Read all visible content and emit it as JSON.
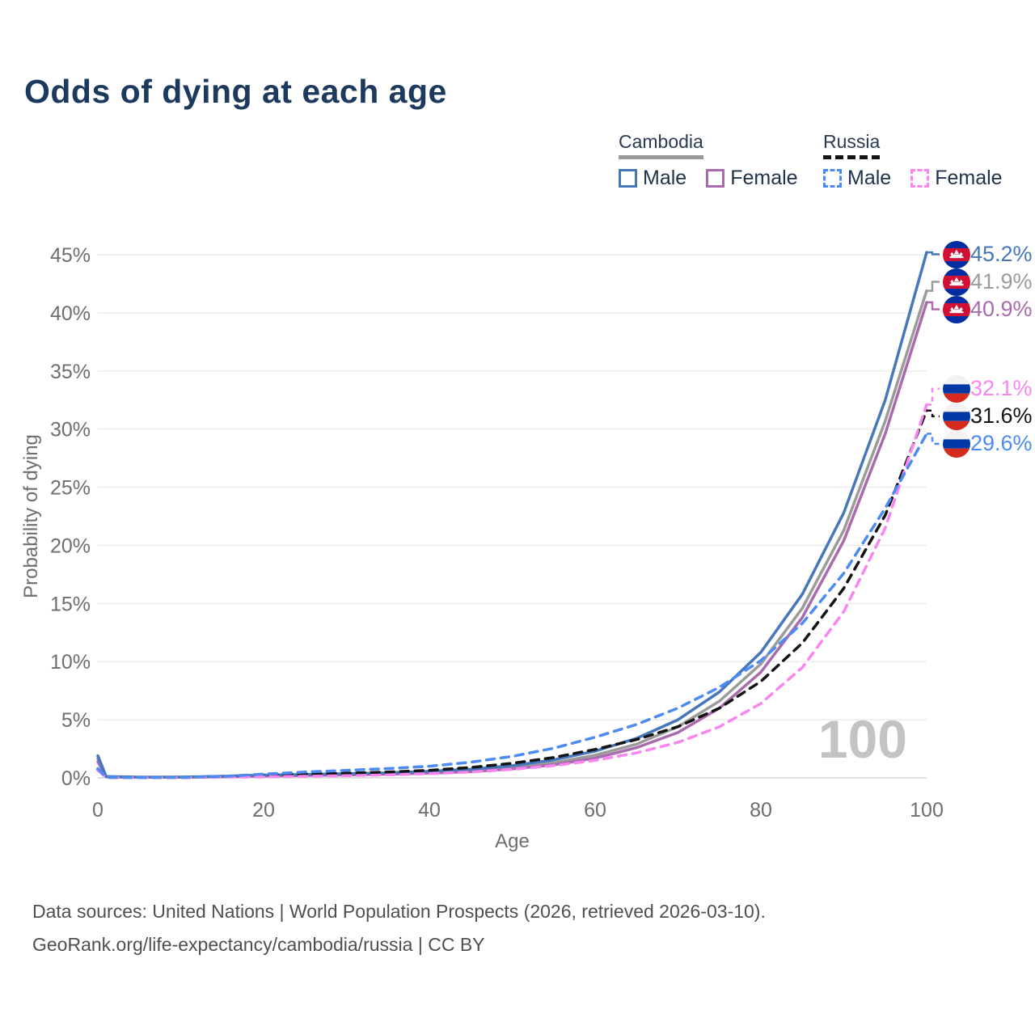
{
  "title": "Odds of dying at each age",
  "watermark": "100",
  "legend": {
    "groups": [
      {
        "country": "Cambodia",
        "underline_color": "#9a9a9a",
        "underline_dashed": false,
        "items": [
          {
            "label": "Male",
            "color": "#4677bd",
            "dashed": false
          },
          {
            "label": "Female",
            "color": "#a96bae",
            "dashed": false
          }
        ]
      },
      {
        "country": "Russia",
        "underline_color": "#141414",
        "underline_dashed": true,
        "items": [
          {
            "label": "Male",
            "color": "#4c8bf2",
            "dashed": true
          },
          {
            "label": "Female",
            "color": "#f986f0",
            "dashed": true
          }
        ]
      }
    ]
  },
  "chart_data": {
    "type": "line",
    "title": "Odds of dying at each age",
    "xlabel": "Age",
    "ylabel": "Probability of dying",
    "xlim": [
      0,
      100
    ],
    "ylim": [
      0,
      45
    ],
    "xticks": [
      0,
      20,
      40,
      60,
      80,
      100
    ],
    "yticks": [
      0,
      5,
      10,
      15,
      20,
      25,
      30,
      35,
      40,
      45
    ],
    "ytick_suffix": "%",
    "grid": "horizontal",
    "legend_position": "top-right",
    "x": [
      0,
      1,
      5,
      10,
      15,
      20,
      25,
      30,
      35,
      40,
      45,
      50,
      55,
      60,
      65,
      70,
      75,
      80,
      85,
      90,
      95,
      100
    ],
    "series": [
      {
        "name": "Cambodia Both sexes",
        "country": "Cambodia",
        "sex": "Both",
        "color": "#9b9b9b",
        "dashed": false,
        "flag": "cambodia",
        "end_label": "41.9%",
        "end_value": 41.9,
        "values": [
          1.65,
          0.1,
          0.05,
          0.06,
          0.12,
          0.2,
          0.25,
          0.3,
          0.37,
          0.47,
          0.63,
          0.9,
          1.3,
          1.95,
          2.9,
          4.4,
          6.6,
          9.8,
          14.6,
          21.3,
          30.7,
          41.9
        ]
      },
      {
        "name": "Cambodia Female",
        "country": "Cambodia",
        "sex": "Female",
        "color": "#a96bae",
        "dashed": false,
        "flag": "cambodia",
        "end_label": "40.9%",
        "end_value": 40.9,
        "values": [
          1.4,
          0.09,
          0.05,
          0.05,
          0.1,
          0.16,
          0.2,
          0.25,
          0.31,
          0.4,
          0.53,
          0.77,
          1.12,
          1.7,
          2.6,
          3.9,
          6.0,
          9.1,
          13.8,
          20.4,
          29.6,
          40.9
        ]
      },
      {
        "name": "Cambodia Male",
        "country": "Cambodia",
        "sex": "Male",
        "color": "#4677bd",
        "dashed": false,
        "flag": "cambodia",
        "end_label": "45.2%",
        "end_value": 45.2,
        "values": [
          1.9,
          0.12,
          0.06,
          0.07,
          0.14,
          0.24,
          0.3,
          0.36,
          0.44,
          0.56,
          0.75,
          1.05,
          1.55,
          2.3,
          3.4,
          5.0,
          7.4,
          10.8,
          15.8,
          22.8,
          32.5,
          45.2
        ]
      },
      {
        "name": "Russia Both sexes",
        "country": "Russia",
        "sex": "Both",
        "color": "#141414",
        "dashed": true,
        "flag": "russia",
        "end_label": "31.6%",
        "end_value": 31.6,
        "values": [
          0.7,
          0.04,
          0.03,
          0.03,
          0.09,
          0.2,
          0.3,
          0.4,
          0.5,
          0.65,
          0.9,
          1.25,
          1.75,
          2.45,
          3.3,
          4.4,
          6.0,
          8.3,
          11.6,
          16.3,
          22.6,
          31.6
        ]
      },
      {
        "name": "Russia Female",
        "country": "Russia",
        "sex": "Female",
        "color": "#f986f0",
        "dashed": true,
        "flag": "russia",
        "end_label": "32.1%",
        "end_value": 32.1,
        "values": [
          0.65,
          0.04,
          0.02,
          0.03,
          0.06,
          0.1,
          0.14,
          0.19,
          0.26,
          0.36,
          0.5,
          0.73,
          1.05,
          1.5,
          2.15,
          3.05,
          4.4,
          6.4,
          9.5,
          14.3,
          21.5,
          32.1
        ]
      },
      {
        "name": "Russia Male",
        "country": "Russia",
        "sex": "Male",
        "color": "#4c8bf2",
        "dashed": true,
        "flag": "russia",
        "end_label": "29.6%",
        "end_value": 29.6,
        "values": [
          0.8,
          0.05,
          0.03,
          0.04,
          0.12,
          0.33,
          0.5,
          0.65,
          0.8,
          1.0,
          1.35,
          1.85,
          2.55,
          3.5,
          4.6,
          6.0,
          7.8,
          10.1,
          13.3,
          17.6,
          23.2,
          29.6
        ]
      }
    ],
    "end_label_order_top_to_bottom": [
      "45.2%",
      "41.9%",
      "40.9%",
      "32.1%",
      "31.6%",
      "29.6%"
    ]
  },
  "flag_colors": {
    "cambodia": {
      "blue": "#032ea1",
      "red": "#d21034",
      "temple": "#ffffff"
    },
    "russia": {
      "white": "#f2f2f2",
      "blue": "#0039a6",
      "red": "#d52b1e"
    }
  },
  "axis_style": {
    "tick_color": "#6e6e6e",
    "grid_color": "#ececec",
    "zero_line_color": "#dedede"
  },
  "source": {
    "line1": "Data sources: United Nations | World Population Prospects (2026, retrieved 2026-03-10).",
    "line2": "GeoRank.org/life-expectancy/cambodia/russia | CC BY"
  }
}
